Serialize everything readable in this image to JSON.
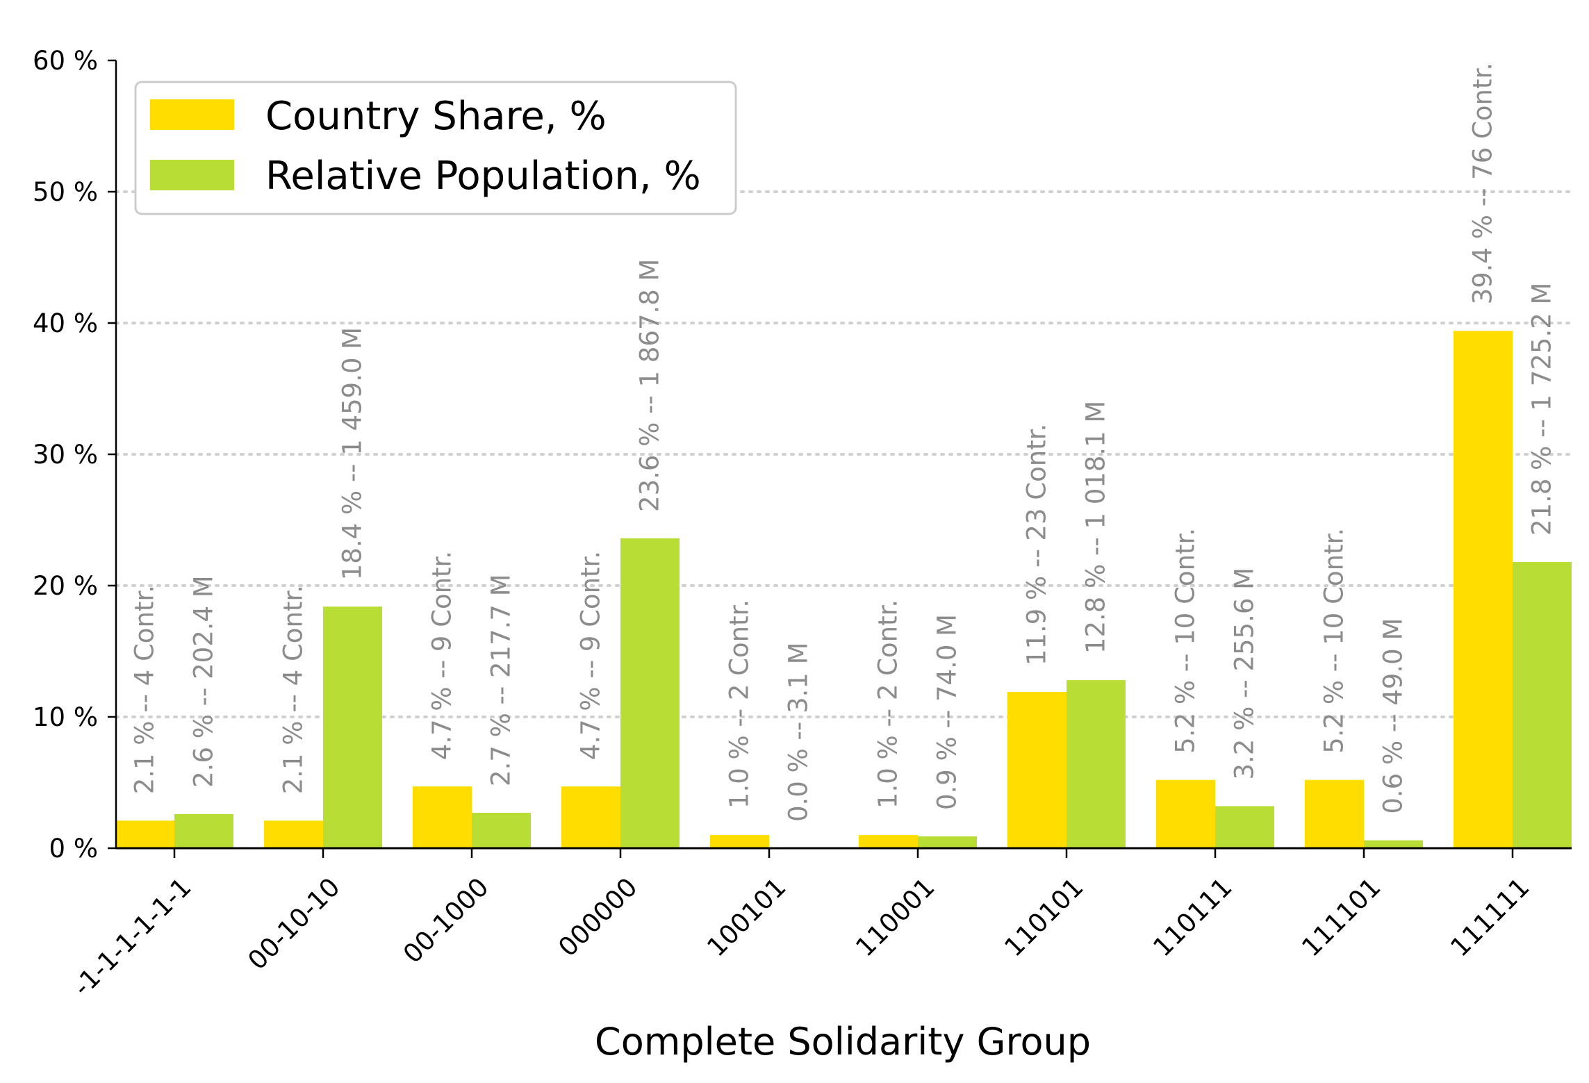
{
  "chart_data": {
    "type": "bar",
    "xlabel": "Complete Solidarity Group",
    "ylabel": "",
    "ylim": [
      0,
      60
    ],
    "y_ticks": [
      0,
      10,
      20,
      30,
      40,
      50,
      60
    ],
    "y_tick_labels": [
      "0 %",
      "10 %",
      "20 %",
      "30 %",
      "40 %",
      "50 %",
      "60 %"
    ],
    "grid": "horizontal dotted",
    "legend_position": "top-left",
    "categories": [
      "-1-1-1-1-1-1",
      "00-10-10",
      "00-1000",
      "000000",
      "100101",
      "110001",
      "110101",
      "110111",
      "111101",
      "111111"
    ],
    "series": [
      {
        "name": "Country Share, %",
        "color": "#ffdd00",
        "values": [
          2.1,
          2.1,
          4.7,
          4.7,
          1.0,
          1.0,
          11.9,
          5.2,
          5.2,
          39.4
        ],
        "labels": [
          "2.1 % -- 4 Contr.",
          "2.1 % -- 4 Contr.",
          "4.7 % -- 9 Contr.",
          "4.7 % -- 9 Contr.",
          "1.0 % -- 2 Contr.",
          "1.0 % -- 2 Contr.",
          "11.9 % -- 23 Contr.",
          "5.2 % -- 10 Contr.",
          "5.2 % -- 10 Contr.",
          "39.4 % -- 76 Contr."
        ]
      },
      {
        "name": "Relative Population, %",
        "color": "#b8dd35",
        "values": [
          2.6,
          18.4,
          2.7,
          23.6,
          0.0,
          0.9,
          12.8,
          3.2,
          0.6,
          21.8
        ],
        "labels": [
          "2.6 % -- 202.4 M",
          "18.4 % -- 1 459.0 M",
          "2.7 % -- 217.7 M",
          "23.6 % -- 1 867.8 M",
          "0.0 % -- 3.1 M",
          "0.9 % -- 74.0 M",
          "12.8 % -- 1 018.1 M",
          "3.2 % -- 255.6 M",
          "0.6 % -- 49.0 M",
          "21.8 % -- 1 725.2 M"
        ]
      }
    ]
  }
}
